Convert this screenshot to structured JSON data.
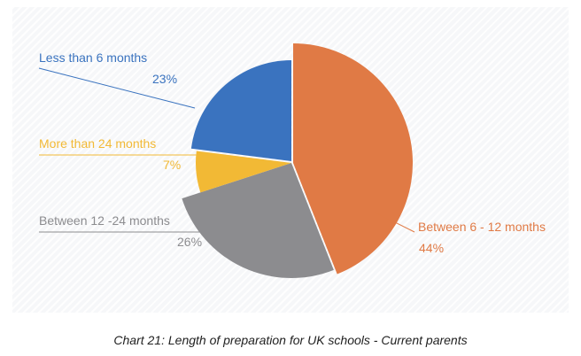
{
  "caption": "Chart 21: Length of preparation for UK schools - Current parents",
  "chart_data": {
    "type": "pie",
    "title": "Chart 21: Length of preparation for UK schools - Current parents",
    "slices": [
      {
        "label": "Between 6 - 12 months",
        "value": 44,
        "value_label": "44%",
        "color": "#e07a45"
      },
      {
        "label": "Between 12 -24 months",
        "value": 26,
        "value_label": "26%",
        "color": "#8c8c8f"
      },
      {
        "label": "More than 24 months",
        "value": 7,
        "value_label": "7%",
        "color": "#f2b935"
      },
      {
        "label": "Less than 6 months",
        "value": 23,
        "value_label": "23%",
        "color": "#3a73bf"
      }
    ],
    "legend": "none"
  }
}
